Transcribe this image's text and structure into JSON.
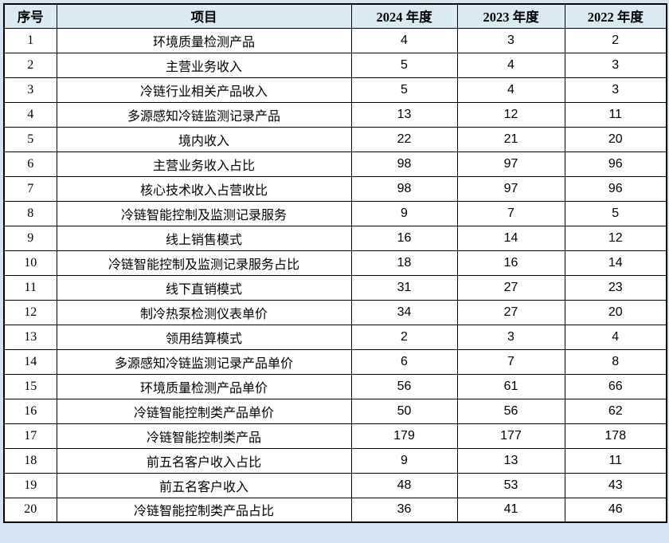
{
  "colors": {
    "page_bg": "#d2e5f0",
    "header_bg": "#daeaf3",
    "cell_bg": "#ffffff",
    "border": "#000000",
    "text": "#000000"
  },
  "table": {
    "columns": [
      {
        "key": "index",
        "label": "序号"
      },
      {
        "key": "item",
        "label": "项目"
      },
      {
        "key": "y2024",
        "label": "2024 年度"
      },
      {
        "key": "y2023",
        "label": "2023 年度"
      },
      {
        "key": "y2022",
        "label": "2022 年度"
      }
    ],
    "rows": [
      {
        "index": "1",
        "item": "环境质量检测产品",
        "y2024": "4",
        "y2023": "3",
        "y2022": "2"
      },
      {
        "index": "2",
        "item": "主营业务收入",
        "y2024": "5",
        "y2023": "4",
        "y2022": "3"
      },
      {
        "index": "3",
        "item": "冷链行业相关产品收入",
        "y2024": "5",
        "y2023": "4",
        "y2022": "3"
      },
      {
        "index": "4",
        "item": "多源感知冷链监测记录产品",
        "y2024": "13",
        "y2023": "12",
        "y2022": "11"
      },
      {
        "index": "5",
        "item": "境内收入",
        "y2024": "22",
        "y2023": "21",
        "y2022": "20"
      },
      {
        "index": "6",
        "item": "主营业务收入占比",
        "y2024": "98",
        "y2023": "97",
        "y2022": "96"
      },
      {
        "index": "7",
        "item": "核心技术收入占营收比",
        "y2024": "98",
        "y2023": "97",
        "y2022": "96"
      },
      {
        "index": "8",
        "item": "冷链智能控制及监测记录服务",
        "y2024": "9",
        "y2023": "7",
        "y2022": "5"
      },
      {
        "index": "9",
        "item": "线上销售模式",
        "y2024": "16",
        "y2023": "14",
        "y2022": "12"
      },
      {
        "index": "10",
        "item": "冷链智能控制及监测记录服务占比",
        "y2024": "18",
        "y2023": "16",
        "y2022": "14"
      },
      {
        "index": "11",
        "item": "线下直销模式",
        "y2024": "31",
        "y2023": "27",
        "y2022": "23"
      },
      {
        "index": "12",
        "item": "制冷热泵检测仪表单价",
        "y2024": "34",
        "y2023": "27",
        "y2022": "20"
      },
      {
        "index": "13",
        "item": "领用结算模式",
        "y2024": "2",
        "y2023": "3",
        "y2022": "4"
      },
      {
        "index": "14",
        "item": "多源感知冷链监测记录产品单价",
        "y2024": "6",
        "y2023": "7",
        "y2022": "8"
      },
      {
        "index": "15",
        "item": "环境质量检测产品单价",
        "y2024": "56",
        "y2023": "61",
        "y2022": "66"
      },
      {
        "index": "16",
        "item": "冷链智能控制类产品单价",
        "y2024": "50",
        "y2023": "56",
        "y2022": "62"
      },
      {
        "index": "17",
        "item": "冷链智能控制类产品",
        "y2024": "179",
        "y2023": "177",
        "y2022": "178"
      },
      {
        "index": "18",
        "item": "前五名客户收入占比",
        "y2024": "9",
        "y2023": "13",
        "y2022": "11"
      },
      {
        "index": "19",
        "item": "前五名客户收入",
        "y2024": "48",
        "y2023": "53",
        "y2022": "43"
      },
      {
        "index": "20",
        "item": "冷链智能控制类产品占比",
        "y2024": "36",
        "y2023": "41",
        "y2022": "46"
      }
    ]
  }
}
